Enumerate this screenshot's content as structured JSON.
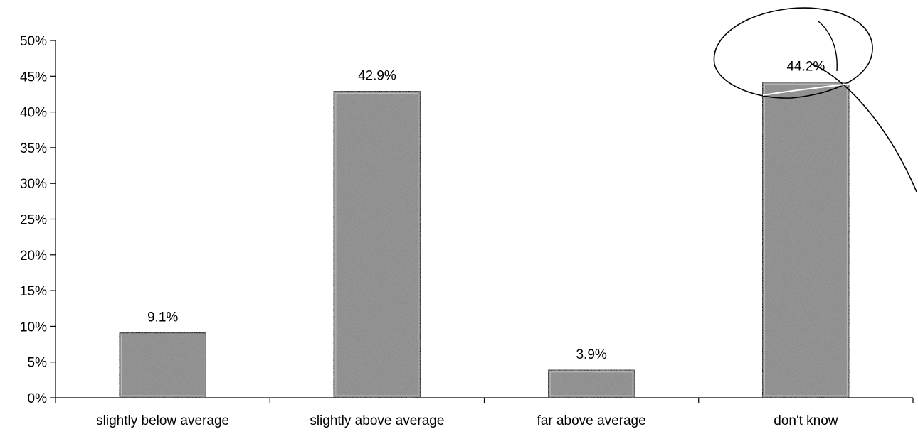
{
  "chart_data": {
    "type": "bar",
    "categories": [
      "slightly below average",
      "slightly above average",
      "far above average",
      "don't know"
    ],
    "values": [
      9.1,
      42.9,
      3.9,
      44.2
    ],
    "data_labels": [
      "9.1%",
      "42.9%",
      "3.9%",
      "44.2%"
    ],
    "ylim": [
      0,
      50
    ],
    "yticks": [
      0,
      5,
      10,
      15,
      20,
      25,
      30,
      35,
      40,
      45,
      50
    ],
    "ytick_labels": [
      "0%",
      "5%",
      "10%",
      "15%",
      "20%",
      "25%",
      "30%",
      "35%",
      "40%",
      "45%",
      "50%"
    ],
    "grid": false,
    "legend": "none",
    "bar_color": "#8c8c8c",
    "annotation": "hand-drawn circle around the don't know bar label"
  }
}
